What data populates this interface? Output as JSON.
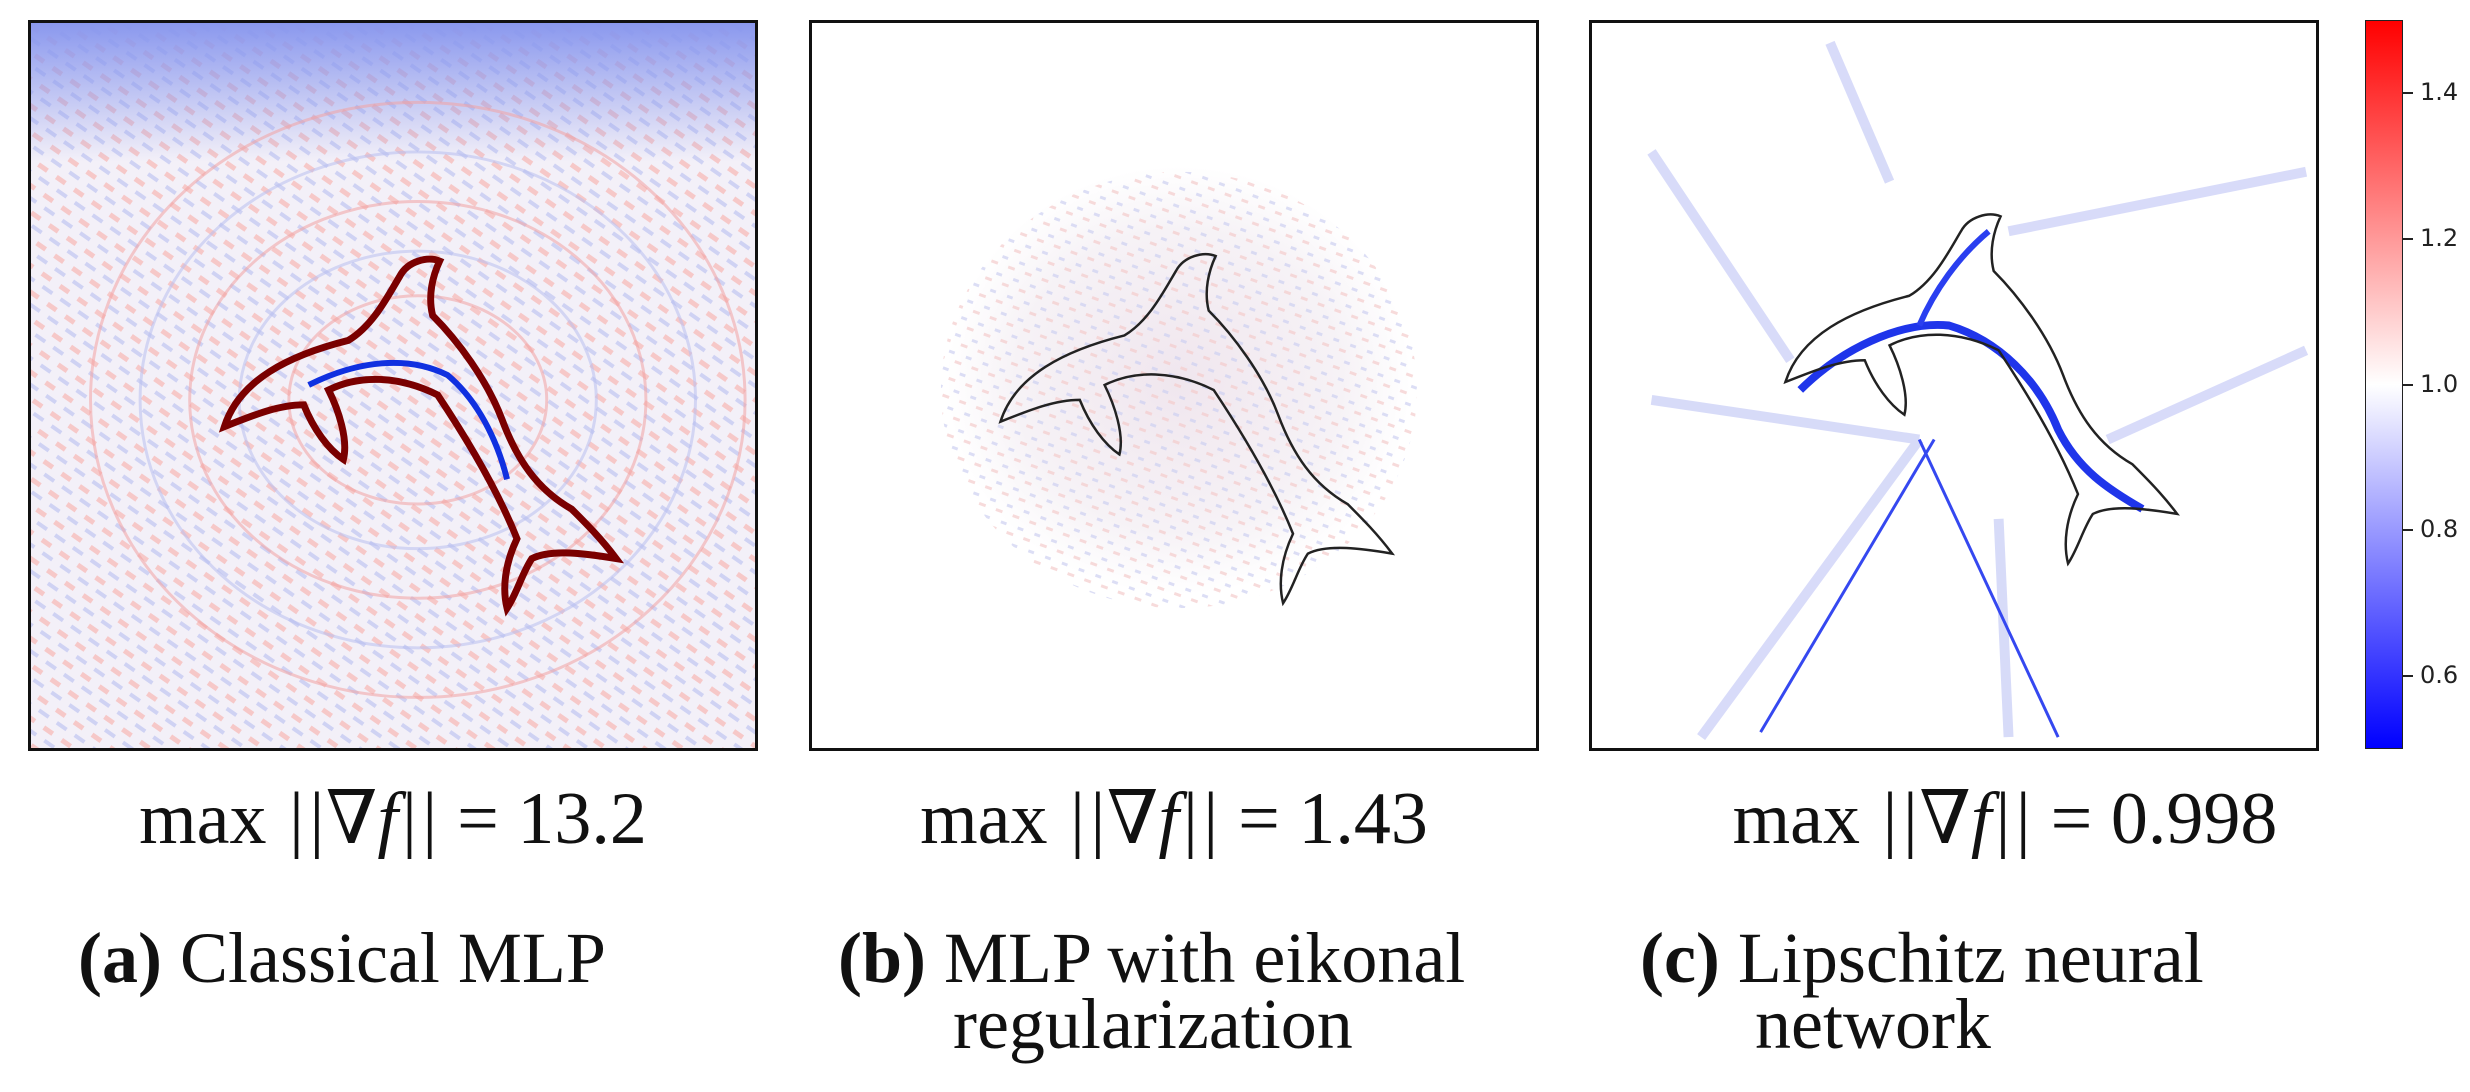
{
  "panels": [
    {
      "max_label": "max",
      "grad_expr": "||∇f||",
      "eq": "=",
      "value": "13.2",
      "caption_tag": "(a)",
      "caption_line1": "Classical MLP",
      "caption_line2": ""
    },
    {
      "max_label": "max",
      "grad_expr": "||∇f||",
      "eq": "=",
      "value": "1.43",
      "caption_tag": "(b)",
      "caption_line1": "MLP with eikonal",
      "caption_line2": "regularization"
    },
    {
      "max_label": "max",
      "grad_expr": "||∇f||",
      "eq": "=",
      "value": "0.998",
      "caption_tag": "(c)",
      "caption_line1": "Lipschitz neural",
      "caption_line2": "network"
    }
  ],
  "colorbar": {
    "ticks": [
      "1.4",
      "1.2",
      "1.0",
      "0.8",
      "0.6"
    ],
    "tick_values": [
      1.4,
      1.2,
      1.0,
      0.8,
      0.6
    ],
    "range": [
      0.5,
      1.5
    ],
    "colors": {
      "low": "#0000ff",
      "mid": "#ffffff",
      "high": "#ff0000"
    }
  }
}
